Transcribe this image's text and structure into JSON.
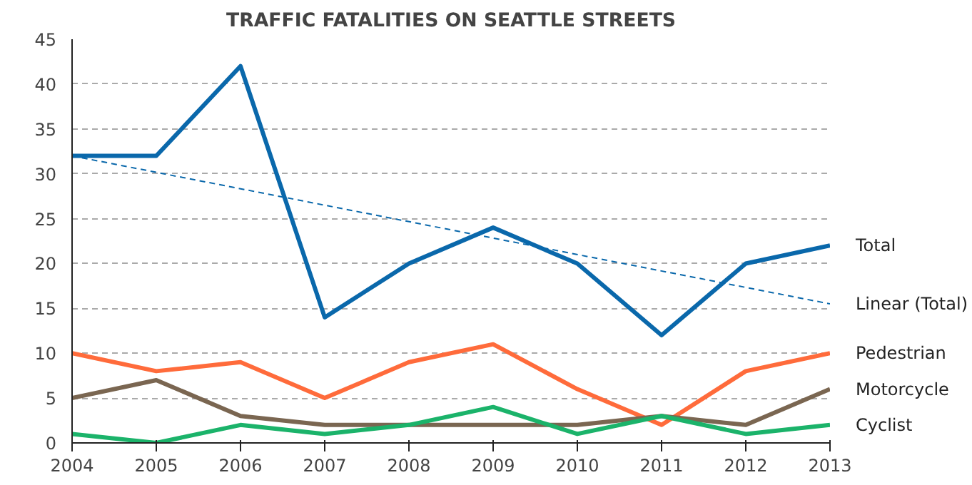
{
  "chart_data": {
    "type": "line",
    "title": "TRAFFIC FATALITIES ON SEATTLE STREETS",
    "x": [
      2004,
      2005,
      2006,
      2007,
      2008,
      2009,
      2010,
      2011,
      2012,
      2013
    ],
    "series": [
      {
        "name": "Total",
        "color": "#0a68ab",
        "values": [
          32,
          32,
          42,
          14,
          20,
          24,
          20,
          12,
          20,
          22
        ]
      },
      {
        "name": "Linear (Total)",
        "color": "#0a68ab",
        "line_style": "dashed",
        "x": [
          2004,
          2013
        ],
        "values": [
          32,
          15.5
        ]
      },
      {
        "name": "Pedestrian",
        "color": "#ff6b3b",
        "values": [
          10,
          8,
          9,
          5,
          9,
          11,
          6,
          2,
          8,
          10
        ]
      },
      {
        "name": "Motorcycle",
        "color": "#7a6651",
        "values": [
          5,
          7,
          3,
          2,
          2,
          2,
          2,
          3,
          2,
          6
        ]
      },
      {
        "name": "Cyclist",
        "color": "#1bb36a",
        "values": [
          1,
          0,
          2,
          1,
          2,
          4,
          1,
          3,
          1,
          2
        ]
      }
    ],
    "xlim": [
      2004,
      2013
    ],
    "ylim": [
      0,
      45
    ],
    "xticks": [
      2004,
      2005,
      2006,
      2007,
      2008,
      2009,
      2010,
      2011,
      2012,
      2013
    ],
    "yticks": [
      0,
      5,
      10,
      15,
      20,
      25,
      30,
      35,
      40,
      45
    ],
    "grid": "y",
    "marker": "none"
  }
}
